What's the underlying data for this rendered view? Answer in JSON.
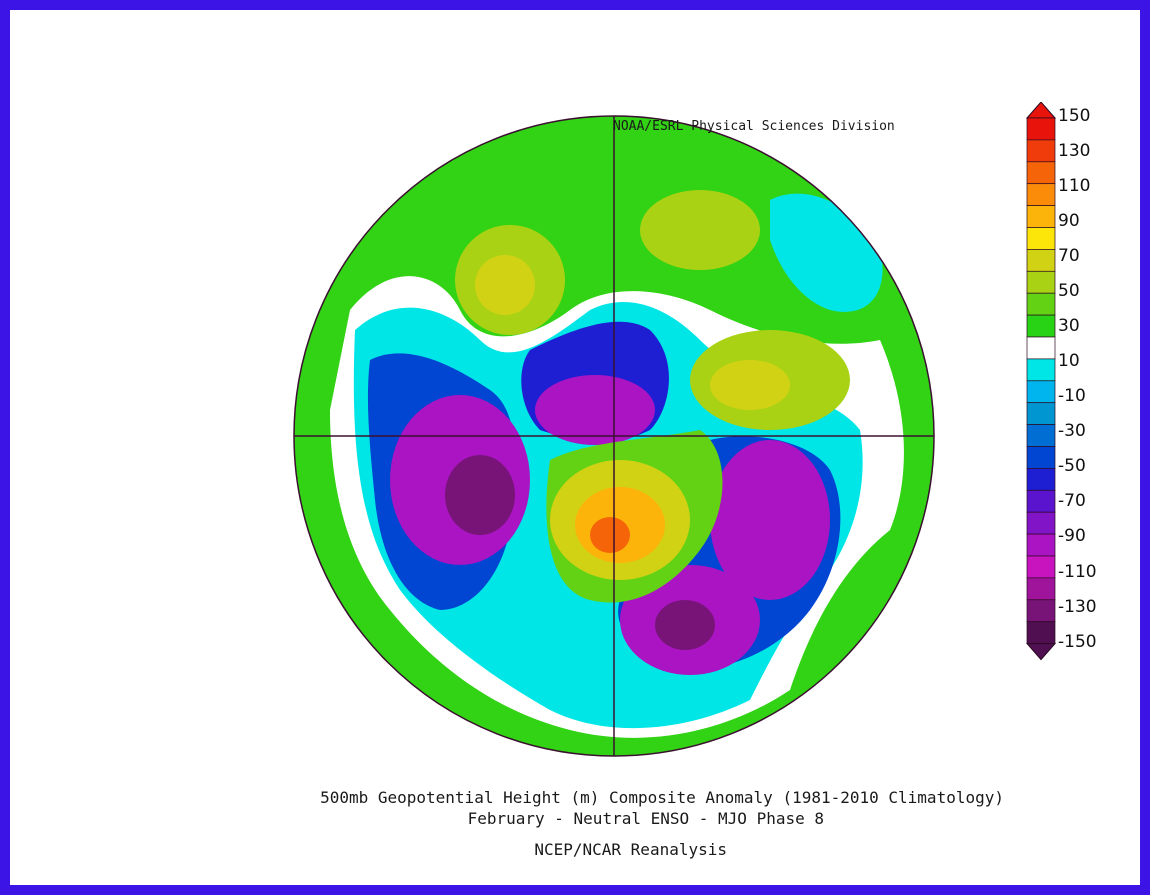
{
  "credit": "NOAA/ESRL Physical Sciences Division",
  "title_line1": "500mb Geopotential Height (m) Composite Anomaly (1981-2010 Climatology)",
  "title_line2": "February - Neutral ENSO - MJO Phase 8",
  "title_line3": "NCEP/NCAR Reanalysis",
  "colorbar": {
    "labels": [
      "150",
      "130",
      "110",
      "90",
      "70",
      "50",
      "30",
      "10",
      "-10",
      "-30",
      "-50",
      "-70",
      "-90",
      "-110",
      "-130",
      "-150"
    ],
    "colors": [
      "#e8140c",
      "#f03c0a",
      "#f6640a",
      "#fa8c0a",
      "#fcb40a",
      "#fce60a",
      "#d2d214",
      "#aad214",
      "#64d214",
      "#28d214",
      "#ffffff",
      "#00e6e6",
      "#00b4ee",
      "#0096d2",
      "#006ed2",
      "#0046d2",
      "#1e1ed2",
      "#5a14cd",
      "#8214c8",
      "#aa14c3",
      "#c814be",
      "#a0149b",
      "#781478",
      "#500f50"
    ],
    "colors_note": "from top (150) to bottom (-150)"
  },
  "map": {
    "projection": "north-polar-stereographic",
    "background_color": "#ffffff",
    "border_color": "#3c14e6",
    "anomaly_centers": [
      {
        "region": "western-pacific-north",
        "sign": "positive"
      },
      {
        "region": "siberia-east-asia",
        "sign": "positive"
      },
      {
        "region": "north-america-arctic",
        "sign": "positive"
      },
      {
        "region": "north-pacific",
        "sign": "negative"
      },
      {
        "region": "arctic-siberia",
        "sign": "negative"
      },
      {
        "region": "atlantic-europe",
        "sign": "negative"
      },
      {
        "region": "north-atlantic",
        "sign": "negative"
      }
    ]
  }
}
